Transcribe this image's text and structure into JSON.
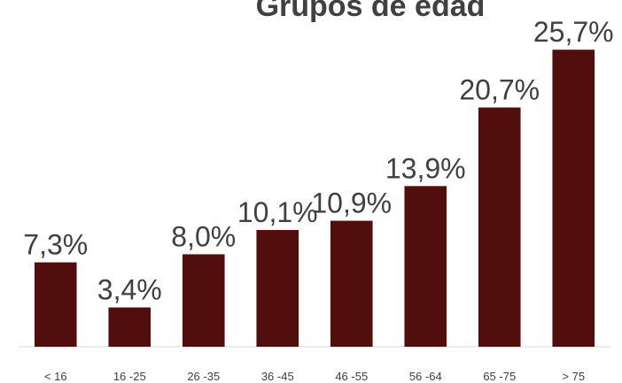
{
  "chart_data": {
    "type": "bar",
    "title": "Grupos de edad",
    "categories": [
      "< 16",
      "16 -25",
      "26 -35",
      "36 -45",
      "46 -55",
      "56 -64",
      "65 -75",
      "> 75"
    ],
    "values": [
      7.3,
      3.4,
      8.0,
      10.1,
      10.9,
      13.9,
      20.7,
      25.7
    ],
    "value_labels": [
      "7,3%",
      "3,4%",
      "8,0%",
      "10,1%",
      "10,9%",
      "13,9%",
      "20,7%",
      "25,7%"
    ],
    "color": "#520d0d",
    "ylim": [
      0,
      30
    ]
  }
}
